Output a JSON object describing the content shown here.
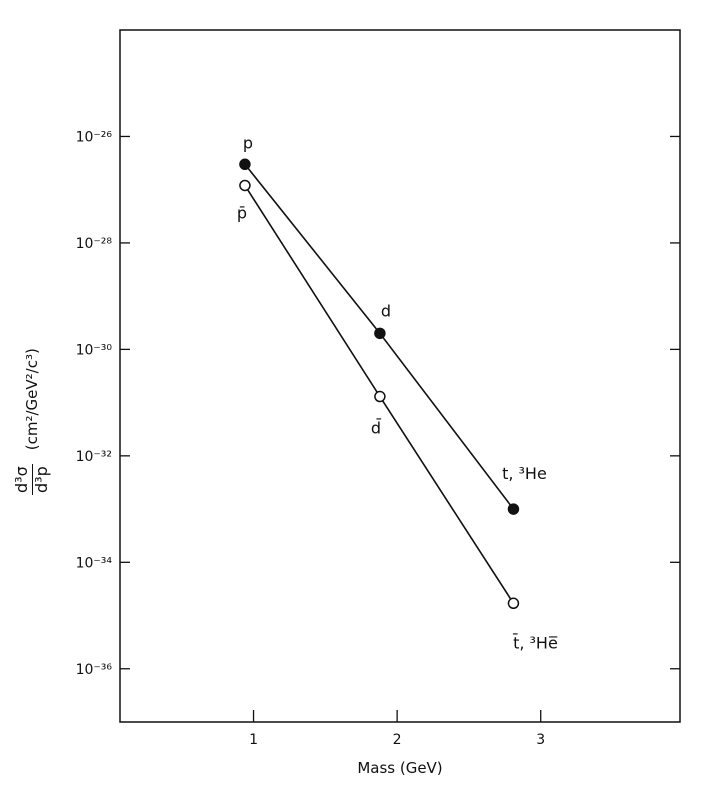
{
  "chart_data": {
    "type": "scatter",
    "xlabel": "Mass (GeV)",
    "ylabel": {
      "numerator": "d³σ",
      "denominator": "d³p",
      "units": "(cm²/GeV²/c³)"
    },
    "x_ticks": [
      "1",
      "2",
      "3"
    ],
    "y_ticks": [
      "10⁻²⁶",
      "10⁻²⁸",
      "10⁻³⁰",
      "10⁻³²",
      "10⁻³⁴",
      "10⁻³⁶"
    ],
    "xlim": [
      0.07,
      3.97
    ],
    "ylim": [
      1e-37,
      1e-24
    ],
    "y_scale": "log",
    "series": [
      {
        "marker": "filled-circle",
        "points": [
          {
            "x": 0.94,
            "y": 3e-27,
            "label": "p"
          },
          {
            "x": 1.88,
            "y": 2e-30,
            "label": "d"
          },
          {
            "x": 2.81,
            "y": 1e-33,
            "label": "t, ³He"
          }
        ]
      },
      {
        "marker": "open-circle",
        "points": [
          {
            "x": 0.94,
            "y": 1.2e-27,
            "label": "p̄"
          },
          {
            "x": 1.88,
            "y": 1.3e-31,
            "label": "d̄"
          },
          {
            "x": 2.81,
            "y": 1.7e-35,
            "label": "t̄, ³He̅"
          }
        ]
      }
    ]
  }
}
